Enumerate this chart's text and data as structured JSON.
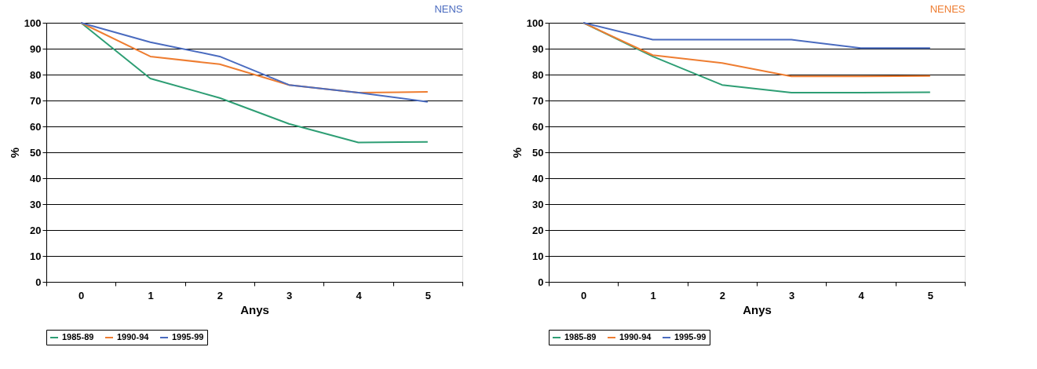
{
  "chart_data": [
    {
      "type": "line",
      "title": "NENS",
      "xlabel": "Anys",
      "ylabel": "%",
      "categories": [
        "0",
        "1",
        "2",
        "3",
        "4",
        "5"
      ],
      "ylim": [
        0,
        100
      ],
      "yticks": [
        0,
        10,
        20,
        30,
        40,
        50,
        60,
        70,
        80,
        90,
        100
      ],
      "grid": "y",
      "legend": "bottom",
      "marker": "none",
      "line_style": "solid",
      "series": [
        {
          "name": "1985-89",
          "color": "#2e9e74",
          "values": [
            100,
            78.5,
            71,
            61,
            53.8,
            54
          ]
        },
        {
          "name": "1990-94",
          "color": "#ee7d31",
          "values": [
            100,
            87,
            84,
            76,
            73,
            73.3
          ]
        },
        {
          "name": "1995-99",
          "color": "#4a6bbf",
          "values": [
            100,
            92.5,
            87,
            76,
            73,
            69.5
          ]
        }
      ]
    },
    {
      "type": "line",
      "title": "NENES",
      "xlabel": "Anys",
      "ylabel": "%",
      "categories": [
        "0",
        "1",
        "2",
        "3",
        "4",
        "5"
      ],
      "ylim": [
        0,
        100
      ],
      "yticks": [
        0,
        10,
        20,
        30,
        40,
        50,
        60,
        70,
        80,
        90,
        100
      ],
      "grid": "y",
      "legend": "bottom",
      "marker": "none",
      "line_style": "solid",
      "series": [
        {
          "name": "1985-89",
          "color": "#2e9e74",
          "values": [
            100,
            87,
            76,
            73,
            73,
            73.2
          ]
        },
        {
          "name": "1990-94",
          "color": "#ee7d31",
          "values": [
            100,
            87.5,
            84.5,
            79.3,
            79.3,
            79.5
          ]
        },
        {
          "name": "1995-99",
          "color": "#4a6bbf",
          "values": [
            100,
            93.5,
            93.5,
            93.5,
            90.2,
            90.2
          ]
        }
      ]
    }
  ]
}
